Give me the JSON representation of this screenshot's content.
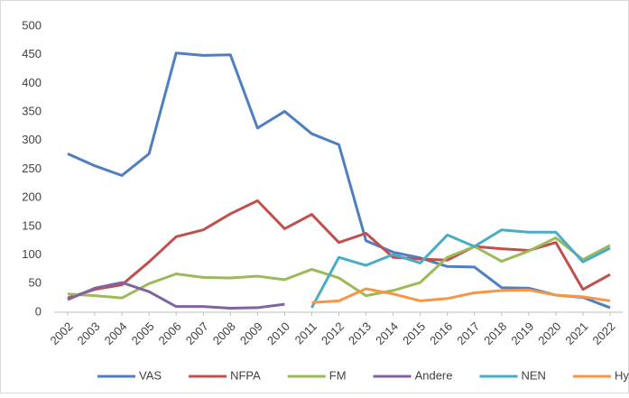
{
  "chart_data": {
    "type": "line",
    "categories": [
      "2002",
      "2003",
      "2004",
      "2005",
      "2006",
      "2007",
      "2008",
      "2009",
      "2010",
      "2011",
      "2012",
      "2013",
      "2014",
      "2015",
      "2016",
      "2017",
      "2018",
      "2019",
      "2020",
      "2021",
      "2022"
    ],
    "series": [
      {
        "name": "VAS",
        "color": "#4f7fc0",
        "values": [
          277,
          256,
          239,
          277,
          453,
          449,
          450,
          322,
          351,
          312,
          293,
          125,
          105,
          95,
          80,
          79,
          43,
          42,
          30,
          26,
          8
        ]
      },
      {
        "name": "NFPA",
        "color": "#c0504d",
        "values": [
          25,
          40,
          48,
          88,
          132,
          144,
          172,
          195,
          146,
          171,
          122,
          138,
          96,
          93,
          91,
          115,
          111,
          108,
          122,
          40,
          66
        ]
      },
      {
        "name": "FM",
        "color": "#9bbb59",
        "values": [
          32,
          29,
          25,
          50,
          67,
          61,
          60,
          63,
          57,
          75,
          60,
          29,
          38,
          52,
          96,
          115,
          89,
          107,
          130,
          92,
          117
        ]
      },
      {
        "name": "Andere",
        "color": "#8064a2",
        "values": [
          22,
          42,
          52,
          36,
          10,
          10,
          7,
          8,
          14,
          null,
          null,
          null,
          null,
          null,
          null,
          null,
          null,
          null,
          null,
          null,
          null
        ]
      },
      {
        "name": "NEN",
        "color": "#4bacc6",
        "values": [
          null,
          null,
          null,
          null,
          null,
          null,
          null,
          null,
          null,
          8,
          96,
          82,
          101,
          86,
          135,
          115,
          144,
          140,
          140,
          88,
          112
        ]
      },
      {
        "name": "Hybride",
        "color": "#f79646",
        "values": [
          null,
          null,
          null,
          null,
          null,
          null,
          null,
          null,
          null,
          17,
          20,
          41,
          32,
          20,
          24,
          34,
          38,
          39,
          30,
          27,
          20
        ]
      }
    ],
    "ylim": [
      0,
      500
    ],
    "yticks": [
      0,
      50,
      100,
      150,
      200,
      250,
      300,
      350,
      400,
      450,
      500
    ],
    "grid": false,
    "legend": "bottom"
  }
}
